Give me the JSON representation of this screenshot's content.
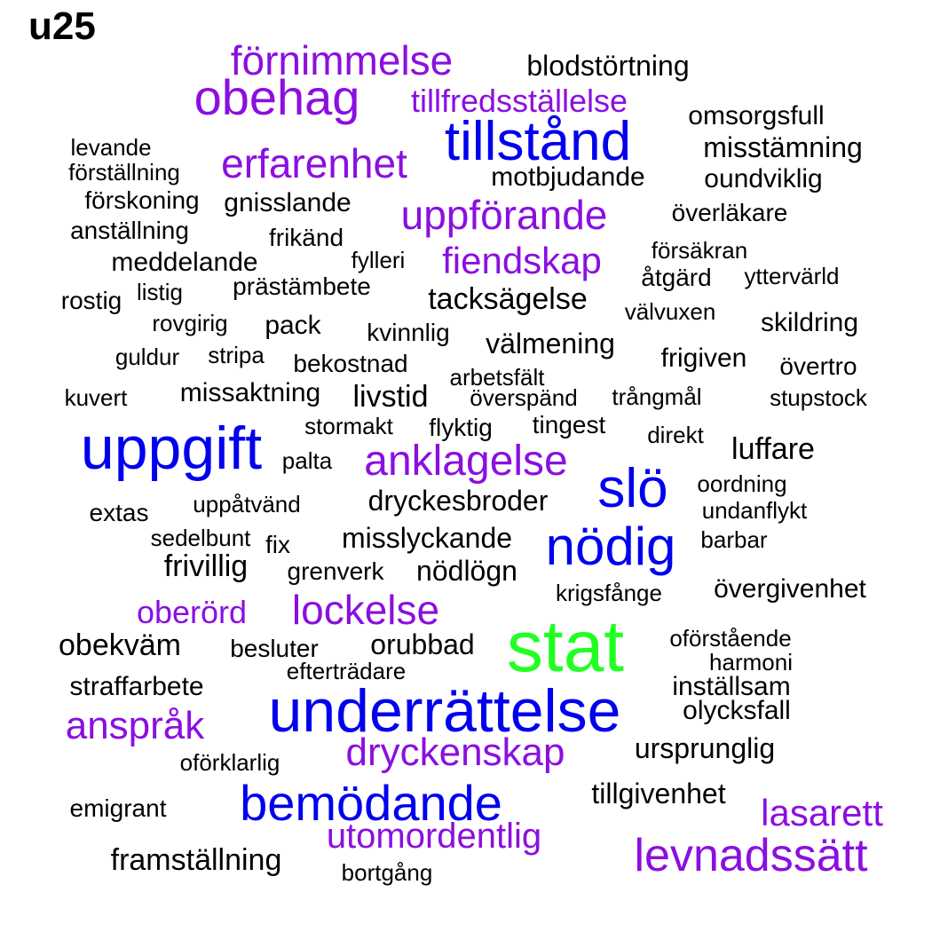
{
  "title": "u25",
  "colors": {
    "black": "#000000",
    "purple": "#8b0fe0",
    "blue": "#0000ee",
    "green": "#22ff22"
  },
  "words": [
    {
      "text": "förnimmelse",
      "color": "purple"
    },
    {
      "text": "blodstörtning",
      "color": "black"
    },
    {
      "text": "obehag",
      "color": "purple"
    },
    {
      "text": "tillfredsställelse",
      "color": "purple"
    },
    {
      "text": "omsorgsfull",
      "color": "black"
    },
    {
      "text": "tillstånd",
      "color": "blue"
    },
    {
      "text": "levande",
      "color": "black"
    },
    {
      "text": "förställning",
      "color": "black"
    },
    {
      "text": "erfarenhet",
      "color": "purple"
    },
    {
      "text": "misstämning",
      "color": "black"
    },
    {
      "text": "motbjudande",
      "color": "black"
    },
    {
      "text": "oundviklig",
      "color": "black"
    },
    {
      "text": "förskoning",
      "color": "black"
    },
    {
      "text": "gnisslande",
      "color": "black"
    },
    {
      "text": "uppförande",
      "color": "purple"
    },
    {
      "text": "överläkare",
      "color": "black"
    },
    {
      "text": "anställning",
      "color": "black"
    },
    {
      "text": "frikänd",
      "color": "black"
    },
    {
      "text": "försäkran",
      "color": "black"
    },
    {
      "text": "meddelande",
      "color": "black"
    },
    {
      "text": "fylleri",
      "color": "black"
    },
    {
      "text": "fiendskap",
      "color": "purple"
    },
    {
      "text": "åtgärd",
      "color": "black"
    },
    {
      "text": "yttervärld",
      "color": "black"
    },
    {
      "text": "listig",
      "color": "black"
    },
    {
      "text": "prästämbete",
      "color": "black"
    },
    {
      "text": "rostig",
      "color": "black"
    },
    {
      "text": "tacksägelse",
      "color": "black"
    },
    {
      "text": "välvuxen",
      "color": "black"
    },
    {
      "text": "rovgirig",
      "color": "black"
    },
    {
      "text": "pack",
      "color": "black"
    },
    {
      "text": "kvinnlig",
      "color": "black"
    },
    {
      "text": "skildring",
      "color": "black"
    },
    {
      "text": "välmening",
      "color": "black"
    },
    {
      "text": "guldur",
      "color": "black"
    },
    {
      "text": "stripa",
      "color": "black"
    },
    {
      "text": "bekostnad",
      "color": "black"
    },
    {
      "text": "frigiven",
      "color": "black"
    },
    {
      "text": "övertro",
      "color": "black"
    },
    {
      "text": "arbetsfält",
      "color": "black"
    },
    {
      "text": "kuvert",
      "color": "black"
    },
    {
      "text": "missaktning",
      "color": "black"
    },
    {
      "text": "livstid",
      "color": "black"
    },
    {
      "text": "överspänd",
      "color": "black"
    },
    {
      "text": "trångmål",
      "color": "black"
    },
    {
      "text": "stupstock",
      "color": "black"
    },
    {
      "text": "stormakt",
      "color": "black"
    },
    {
      "text": "flyktig",
      "color": "black"
    },
    {
      "text": "tingest",
      "color": "black"
    },
    {
      "text": "direkt",
      "color": "black"
    },
    {
      "text": "uppgift",
      "color": "blue"
    },
    {
      "text": "luffare",
      "color": "black"
    },
    {
      "text": "palta",
      "color": "black"
    },
    {
      "text": "anklagelse",
      "color": "purple"
    },
    {
      "text": "slö",
      "color": "blue"
    },
    {
      "text": "oordning",
      "color": "black"
    },
    {
      "text": "uppåtvänd",
      "color": "black"
    },
    {
      "text": "dryckesbroder",
      "color": "black"
    },
    {
      "text": "undanflykt",
      "color": "black"
    },
    {
      "text": "extas",
      "color": "black"
    },
    {
      "text": "sedelbunt",
      "color": "black"
    },
    {
      "text": "fix",
      "color": "black"
    },
    {
      "text": "misslyckande",
      "color": "black"
    },
    {
      "text": "nödig",
      "color": "blue"
    },
    {
      "text": "barbar",
      "color": "black"
    },
    {
      "text": "frivillig",
      "color": "black"
    },
    {
      "text": "grenverk",
      "color": "black"
    },
    {
      "text": "nödlögn",
      "color": "black"
    },
    {
      "text": "krigsfånge",
      "color": "black"
    },
    {
      "text": "övergivenhet",
      "color": "black"
    },
    {
      "text": "oberörd",
      "color": "purple"
    },
    {
      "text": "lockelse",
      "color": "purple"
    },
    {
      "text": "obekväm",
      "color": "black"
    },
    {
      "text": "besluter",
      "color": "black"
    },
    {
      "text": "orubbad",
      "color": "black"
    },
    {
      "text": "stat",
      "color": "green"
    },
    {
      "text": "oförstående",
      "color": "black"
    },
    {
      "text": "harmoni",
      "color": "black"
    },
    {
      "text": "efterträdare",
      "color": "black"
    },
    {
      "text": "straffarbete",
      "color": "black"
    },
    {
      "text": "inställsam",
      "color": "black"
    },
    {
      "text": "underrättelse",
      "color": "blue"
    },
    {
      "text": "olycksfall",
      "color": "black"
    },
    {
      "text": "anspråk",
      "color": "purple"
    },
    {
      "text": "dryckenskap",
      "color": "purple"
    },
    {
      "text": "ursprunglig",
      "color": "black"
    },
    {
      "text": "oförklarlig",
      "color": "black"
    },
    {
      "text": "tillgivenhet",
      "color": "black"
    },
    {
      "text": "emigrant",
      "color": "black"
    },
    {
      "text": "bemödande",
      "color": "blue"
    },
    {
      "text": "lasarett",
      "color": "purple"
    },
    {
      "text": "utomordentlig",
      "color": "purple"
    },
    {
      "text": "framställning",
      "color": "black"
    },
    {
      "text": "levnadssätt",
      "color": "purple"
    },
    {
      "text": "bortgång",
      "color": "black"
    }
  ]
}
